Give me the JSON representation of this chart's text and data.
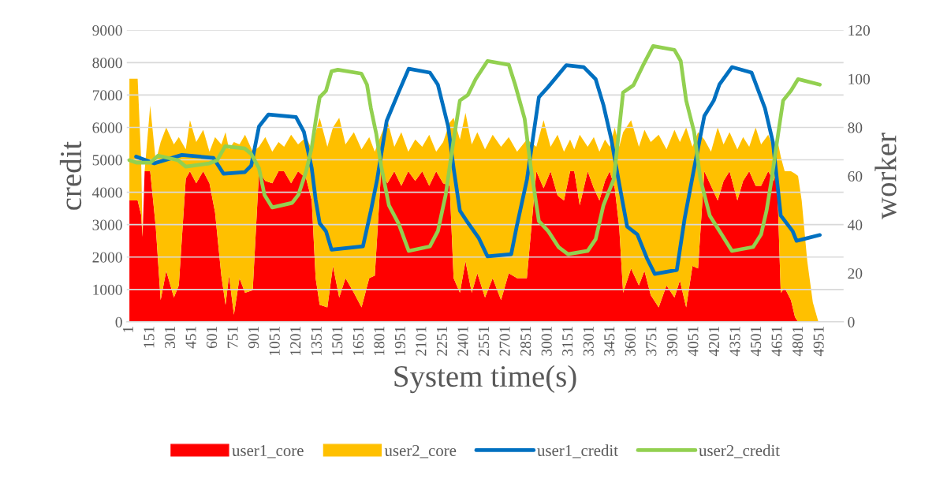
{
  "chart_data": {
    "type": "area",
    "xlabel": "System time(s)",
    "ylabel": "credit",
    "y2label": "worker",
    "xlim": [
      -20,
      5120
    ],
    "xticks": [
      1,
      151,
      301,
      451,
      601,
      751,
      901,
      1051,
      1201,
      1351,
      1501,
      1651,
      1801,
      1951,
      2101,
      2251,
      2401,
      2551,
      2701,
      2851,
      3001,
      3151,
      3301,
      3451,
      3601,
      3751,
      3901,
      4051,
      4201,
      4351,
      4501,
      4651,
      4801,
      4951
    ],
    "ylim": [
      0,
      9000
    ],
    "yticks": [
      0,
      1000,
      2000,
      3000,
      4000,
      5000,
      6000,
      7000,
      8000,
      9000
    ],
    "y2lim": [
      0,
      120
    ],
    "y2ticks": [
      0,
      20,
      40,
      60,
      80,
      100,
      120
    ],
    "grid": "y",
    "legend": "bottom",
    "stacked": true,
    "series": [
      {
        "name": "user1_core",
        "axis": "y2",
        "color": "#ff0000",
        "x": [
          1,
          60,
          85,
          95,
          110,
          150,
          190,
          225,
          265,
          320,
          355,
          405,
          435,
          480,
          530,
          575,
          615,
          660,
          690,
          715,
          750,
          790,
          830,
          885,
          930,
          975,
          1025,
          1070,
          1110,
          1160,
          1210,
          1268,
          1308,
          1336,
          1365,
          1420,
          1460,
          1505,
          1550,
          1610,
          1665,
          1720,
          1760,
          1805,
          1850,
          1900,
          1950,
          2000,
          2050,
          2100,
          2150,
          2200,
          2250,
          2297,
          2325,
          2370,
          2410,
          2455,
          2495,
          2550,
          2605,
          2665,
          2720,
          2780,
          2850,
          2918,
          2970,
          3020,
          3070,
          3116,
          3160,
          3190,
          3229,
          3286,
          3330,
          3370,
          3410,
          3444,
          3480,
          3512,
          3540,
          3597,
          3653,
          3693,
          3738,
          3795,
          3851,
          3908,
          3947,
          3992,
          4037,
          4077,
          4122,
          4170,
          4218,
          4260,
          4303,
          4359,
          4400,
          4444,
          4490,
          4529,
          4580,
          4620,
          4642,
          4670,
          4698,
          4743,
          4772,
          4794,
          4820,
          4860,
          4900,
          4940
        ],
        "values": [
          50,
          50,
          44,
          35,
          62,
          62,
          39,
          9,
          21,
          10,
          15,
          59,
          62,
          57,
          62,
          57,
          45,
          19,
          7,
          19,
          3,
          18,
          12,
          13,
          62,
          58,
          57,
          62,
          62,
          57,
          62,
          59,
          50,
          18,
          7,
          6,
          23,
          10,
          18,
          12,
          6,
          18,
          19,
          62,
          57,
          62,
          56,
          62,
          58,
          62,
          56,
          62,
          57,
          56,
          18,
          12,
          25,
          12,
          20,
          10,
          18,
          9,
          20,
          18,
          18,
          62,
          55,
          62,
          52,
          50,
          62,
          62,
          48,
          62,
          55,
          50,
          58,
          62,
          55,
          39,
          12,
          22,
          15,
          21,
          11,
          6,
          15,
          10,
          17,
          6,
          23,
          22,
          62,
          56,
          50,
          58,
          62,
          50,
          58,
          62,
          56,
          56,
          62,
          58,
          62,
          12,
          14,
          9,
          2,
          0,
          0,
          0,
          0,
          0
        ]
      },
      {
        "name": "user2_core",
        "axis": "y2",
        "color": "#ffc000",
        "x": [
          1,
          60,
          85,
          95,
          110,
          150,
          190,
          225,
          265,
          320,
          355,
          405,
          435,
          480,
          530,
          575,
          615,
          660,
          690,
          715,
          750,
          790,
          830,
          885,
          930,
          975,
          1025,
          1070,
          1110,
          1160,
          1210,
          1268,
          1308,
          1336,
          1365,
          1420,
          1460,
          1505,
          1550,
          1610,
          1665,
          1720,
          1760,
          1805,
          1850,
          1900,
          1950,
          2000,
          2050,
          2100,
          2150,
          2200,
          2250,
          2297,
          2325,
          2370,
          2410,
          2455,
          2495,
          2550,
          2605,
          2665,
          2720,
          2780,
          2850,
          2918,
          2970,
          3020,
          3070,
          3116,
          3160,
          3190,
          3229,
          3286,
          3330,
          3370,
          3410,
          3444,
          3480,
          3512,
          3540,
          3597,
          3653,
          3693,
          3738,
          3795,
          3851,
          3908,
          3947,
          3992,
          4037,
          4077,
          4122,
          4170,
          4218,
          4260,
          4303,
          4359,
          4400,
          4444,
          4490,
          4529,
          4580,
          4620,
          4642,
          4670,
          4698,
          4743,
          4772,
          4794,
          4820,
          4860,
          4900,
          4940
        ],
        "values": [
          50,
          50,
          23,
          1,
          0,
          27,
          27,
          65,
          59,
          63,
          61,
          12,
          21,
          17,
          17,
          13,
          31,
          54,
          71,
          52,
          71,
          55,
          65,
          57,
          10,
          18,
          13,
          12,
          10,
          20,
          11,
          17,
          21,
          60,
          77,
          66,
          57,
          74,
          55,
          66,
          65,
          58,
          51,
          15,
          26,
          10,
          22,
          8,
          17,
          10,
          21,
          8,
          17,
          26,
          66,
          63,
          61,
          61,
          58,
          61,
          59,
          63,
          56,
          52,
          57,
          10,
          28,
          10,
          25,
          20,
          13,
          9,
          29,
          10,
          21,
          20,
          17,
          10,
          25,
          33,
          66,
          61,
          57,
          58,
          63,
          71,
          56,
          69,
          57,
          74,
          49,
          56,
          13,
          14,
          30,
          15,
          16,
          21,
          18,
          10,
          24,
          17,
          15,
          13,
          14,
          56,
          48,
          53,
          59,
          60,
          50,
          25,
          8,
          0
        ]
      },
      {
        "name": "user1_credit",
        "type": "line",
        "color": "#0070c0",
        "x": [
          49,
          179,
          377,
          603,
          676,
          828,
          874,
          930,
          998,
          1195,
          1252,
          1308,
          1336,
          1365,
          1410,
          1450,
          1675,
          1732,
          1777,
          1845,
          1930,
          2003,
          2155,
          2212,
          2286,
          2325,
          2370,
          2427,
          2506,
          2568,
          2738,
          2777,
          2851,
          2936,
          3003,
          3133,
          3258,
          3343,
          3399,
          3456,
          3512,
          3569,
          3642,
          3710,
          3767,
          3925,
          3981,
          4049,
          4122,
          4190,
          4230,
          4320,
          4461,
          4557,
          4614,
          4670,
          4755,
          4783,
          4950
        ],
        "values": [
          5100,
          4890,
          5150,
          5060,
          4570,
          4620,
          4820,
          6030,
          6400,
          6320,
          5860,
          4740,
          3770,
          3040,
          2800,
          2230,
          2330,
          3430,
          4400,
          6200,
          7080,
          7810,
          7690,
          7320,
          6030,
          4740,
          3430,
          3060,
          2580,
          2020,
          2090,
          2940,
          4400,
          6930,
          7250,
          7920,
          7860,
          7490,
          6690,
          5620,
          4260,
          2940,
          2700,
          1970,
          1480,
          1600,
          3190,
          4740,
          6350,
          6830,
          7320,
          7860,
          7690,
          6590,
          5540,
          3280,
          2800,
          2500,
          2680
        ]
      },
      {
        "name": "user2_credit",
        "type": "line",
        "color": "#92d050",
        "x": [
          1,
          55,
          150,
          207,
          348,
          405,
          574,
          631,
          687,
          828,
          874,
          930,
          969,
          1025,
          1167,
          1212,
          1268,
          1308,
          1336,
          1365,
          1410,
          1450,
          1495,
          1664,
          1704,
          1732,
          1771,
          1805,
          1861,
          1930,
          2003,
          2155,
          2212,
          2268,
          2325,
          2370,
          2427,
          2483,
          2568,
          2721,
          2766,
          2834,
          2879,
          2936,
          3003,
          3077,
          3145,
          3286,
          3343,
          3399,
          3473,
          3540,
          3614,
          3681,
          3755,
          3908,
          3953,
          3992,
          4049,
          4094,
          4161,
          4246,
          4320,
          4472,
          4529,
          4568,
          4602,
          4659,
          4687,
          4743,
          4794,
          4950
        ],
        "values": [
          4990,
          4910,
          4910,
          5130,
          4990,
          4790,
          4890,
          4990,
          5420,
          5350,
          5180,
          4740,
          3920,
          3530,
          3670,
          3920,
          4650,
          5380,
          6200,
          6930,
          7130,
          7730,
          7780,
          7660,
          7320,
          6590,
          5790,
          4820,
          3600,
          3040,
          2190,
          2330,
          2800,
          3920,
          5620,
          6830,
          7000,
          7490,
          8050,
          7930,
          7320,
          6270,
          4740,
          3110,
          2800,
          2310,
          2090,
          2190,
          2550,
          3600,
          4400,
          7080,
          7300,
          7900,
          8510,
          8390,
          8050,
          6830,
          5860,
          4400,
          3280,
          2700,
          2190,
          2310,
          2700,
          3430,
          4330,
          6030,
          6830,
          7130,
          7490,
          7320
        ]
      }
    ]
  }
}
